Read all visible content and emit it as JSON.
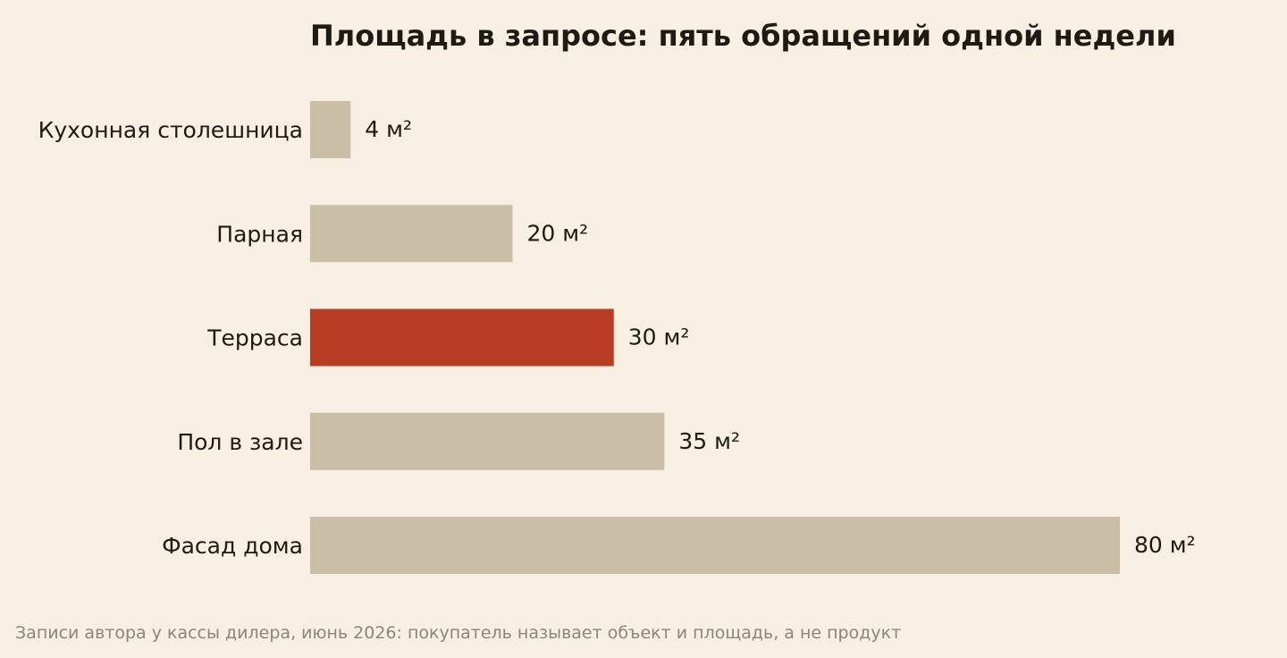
{
  "chart_data": {
    "type": "bar",
    "orientation": "horizontal",
    "title": "Площадь в запросе: пять обращений одной недели",
    "categories": [
      "Кухонная столешница",
      "Парная",
      "Терраса",
      "Пол в зале",
      "Фасад дома"
    ],
    "values": [
      4,
      20,
      30,
      35,
      80
    ],
    "value_labels": [
      "4 м²",
      "20 м²",
      "30 м²",
      "35 м²",
      "80 м²"
    ],
    "unit": "м²",
    "highlight_index": 2,
    "xlim": [
      0,
      80
    ],
    "grid": false,
    "axes_visible": false,
    "colors": {
      "default_bar": "#c9bfa7",
      "highlight_bar": "#b93c25",
      "background": "#f6efe2",
      "text": "#1f1a14",
      "footnote": "#8c857a"
    },
    "footnote": "Записи автора у кассы дилера, июнь 2026: покупатель называет объект и площадь, а не продукт"
  }
}
